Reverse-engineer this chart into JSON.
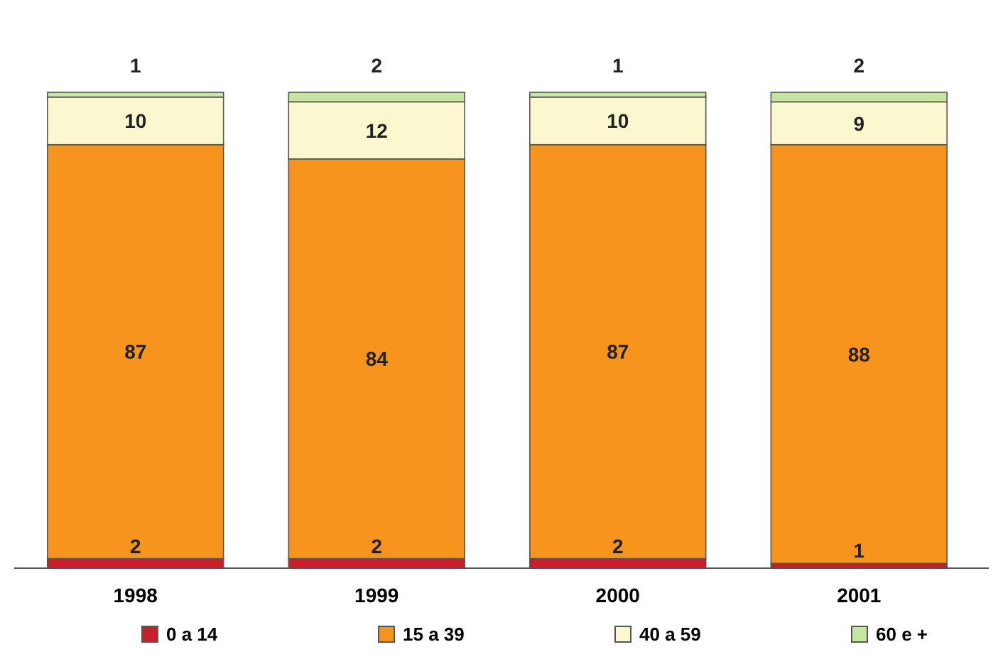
{
  "chart_data": {
    "type": "bar",
    "stacked": true,
    "data_labels": true,
    "legend": "bottom",
    "categories": [
      "1998",
      "1999",
      "2000",
      "2001"
    ],
    "series": [
      {
        "name": "0 a 14",
        "color": "#c8202a",
        "values": [
          2,
          2,
          2,
          1
        ]
      },
      {
        "name": "15 a 39",
        "color": "#f7941d",
        "values": [
          87,
          84,
          87,
          88
        ]
      },
      {
        "name": "40 a 59",
        "color": "#fbf8cf",
        "values": [
          10,
          12,
          10,
          9
        ]
      },
      {
        "name": "60 e +",
        "color": "#c5e5a0",
        "values": [
          1,
          2,
          1,
          2
        ]
      }
    ]
  }
}
